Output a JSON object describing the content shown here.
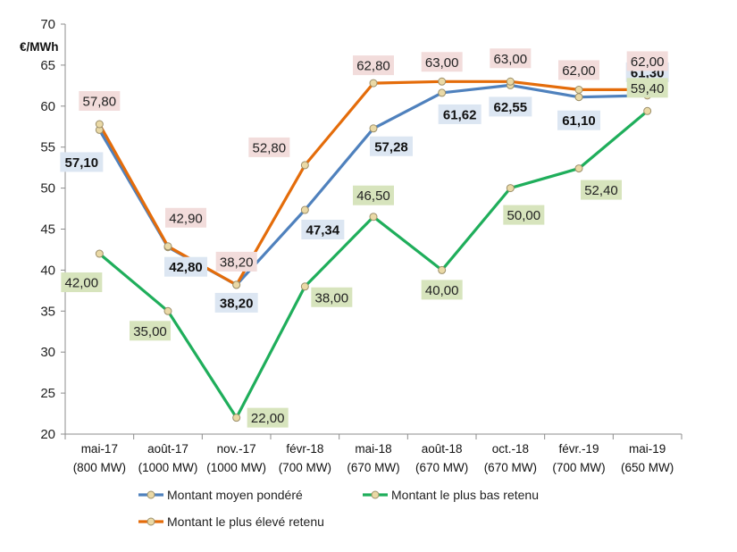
{
  "chart_data": {
    "type": "line",
    "ylabel": "€/MWh",
    "ylim": [
      20,
      70
    ],
    "yticks": [
      "20",
      "25",
      "30",
      "35",
      "40",
      "45",
      "50",
      "55",
      "60",
      "65",
      "70"
    ],
    "grid": false,
    "legend_position": "bottom",
    "categories": [
      {
        "top": "mai-17",
        "bottom": "(800 MW)"
      },
      {
        "top": "août-17",
        "bottom": "(1000 MW)"
      },
      {
        "top": "nov.-17",
        "bottom": "(1000 MW)"
      },
      {
        "top": "févr-18",
        "bottom": "(700 MW)"
      },
      {
        "top": "mai-18",
        "bottom": "(670 MW)"
      },
      {
        "top": "août-18",
        "bottom": "(670 MW)"
      },
      {
        "top": "oct.-18",
        "bottom": "(670 MW)"
      },
      {
        "top": "févr.-19",
        "bottom": "(700 MW)"
      },
      {
        "top": "mai-19",
        "bottom": "(650 MW)"
      }
    ],
    "series": [
      {
        "key": "weighted",
        "name": "Montant moyen pondéré",
        "color": "#4F81BD",
        "label_bg": "#DCE6F2",
        "bold": true,
        "values": [
          57.1,
          42.8,
          38.2,
          47.34,
          57.28,
          61.62,
          62.55,
          61.1,
          61.3
        ],
        "labels": [
          "57,10",
          "42,80",
          "38,20",
          "47,34",
          "57,28",
          "61,62",
          "62,55",
          "61,10",
          "61,30"
        ]
      },
      {
        "key": "low",
        "name": "Montant le plus bas retenu",
        "color": "#1FAE5B",
        "label_bg": "#D7E4BD",
        "bold": false,
        "values": [
          42.0,
          35.0,
          22.0,
          38.0,
          46.5,
          40.0,
          50.0,
          52.4,
          59.4
        ],
        "labels": [
          "42,00",
          "35,00",
          "22,00",
          "38,00",
          "46,50",
          "40,00",
          "50,00",
          "52,40",
          "59,40"
        ]
      },
      {
        "key": "high",
        "name": "Montant le plus élevé retenu",
        "color": "#E46C0A",
        "label_bg": "#F2DCDB",
        "bold": false,
        "values": [
          57.8,
          42.9,
          38.2,
          52.8,
          62.8,
          63.0,
          63.0,
          62.0,
          62.0
        ],
        "labels": [
          "57,80",
          "42,90",
          "38,20",
          "52,80",
          "62,80",
          "63,00",
          "63,00",
          "62,00",
          "62,00"
        ]
      }
    ]
  }
}
